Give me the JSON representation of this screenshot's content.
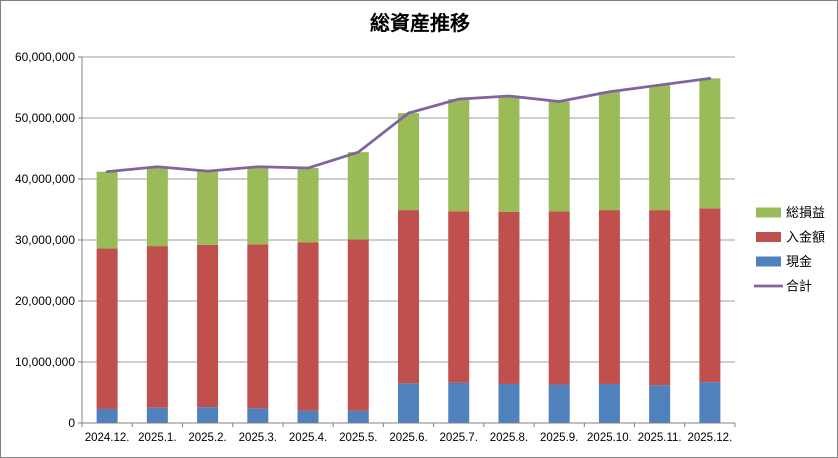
{
  "chart_data": {
    "type": "bar",
    "subtype": "stacked-bar-with-line",
    "title": "総資産推移",
    "categories": [
      "2024.12.",
      "2025.1.",
      "2025.2.",
      "2025.3.",
      "2025.4.",
      "2025.5.",
      "2025.6.",
      "2025.7.",
      "2025.8.",
      "2025.9.",
      "2025.10.",
      "2025.11.",
      "2025.12."
    ],
    "series": [
      {
        "name": "現金",
        "type": "bar",
        "stack_order": 1,
        "color": "#4F81BD",
        "values": [
          2300000,
          2500000,
          2600000,
          2400000,
          2000000,
          2000000,
          6500000,
          6600000,
          6400000,
          6300000,
          6400000,
          6200000,
          6700000
        ]
      },
      {
        "name": "入金額",
        "type": "bar",
        "stack_order": 2,
        "color": "#C0504D",
        "values": [
          26300000,
          26500000,
          26600000,
          26900000,
          27600000,
          28100000,
          28400000,
          28100000,
          28200000,
          28400000,
          28500000,
          28700000,
          28500000
        ]
      },
      {
        "name": "総損益",
        "type": "bar",
        "stack_order": 3,
        "color": "#9BBB59",
        "values": [
          12600000,
          13000000,
          12100000,
          12700000,
          12200000,
          14300000,
          15900000,
          18400000,
          19000000,
          18000000,
          19400000,
          20500000,
          21300000
        ]
      },
      {
        "name": "合計",
        "type": "line",
        "color": "#8064A2",
        "values": [
          41200000,
          42000000,
          41300000,
          42000000,
          41800000,
          44400000,
          50800000,
          53100000,
          53600000,
          52700000,
          54300000,
          55400000,
          56500000
        ]
      }
    ],
    "legend": [
      {
        "label": "総損益",
        "color": "#9BBB59",
        "shape": "rect"
      },
      {
        "label": "入金額",
        "color": "#C0504D",
        "shape": "rect"
      },
      {
        "label": "現金",
        "color": "#4F81BD",
        "shape": "rect"
      },
      {
        "label": "合計",
        "color": "#8064A2",
        "shape": "line"
      }
    ],
    "legend_position": "right",
    "grid": true,
    "y_axis": {
      "min": 0,
      "max": 60000000,
      "step": 10000000,
      "tick_labels": [
        "0",
        "10,000,000",
        "20,000,000",
        "30,000,000",
        "40,000,000",
        "50,000,000",
        "60,000,000"
      ]
    }
  },
  "colors": {
    "background": "#FFFFFF",
    "border": "#808080",
    "axis": "#808080",
    "grid": "#9E9E9E",
    "text": "#000000"
  }
}
